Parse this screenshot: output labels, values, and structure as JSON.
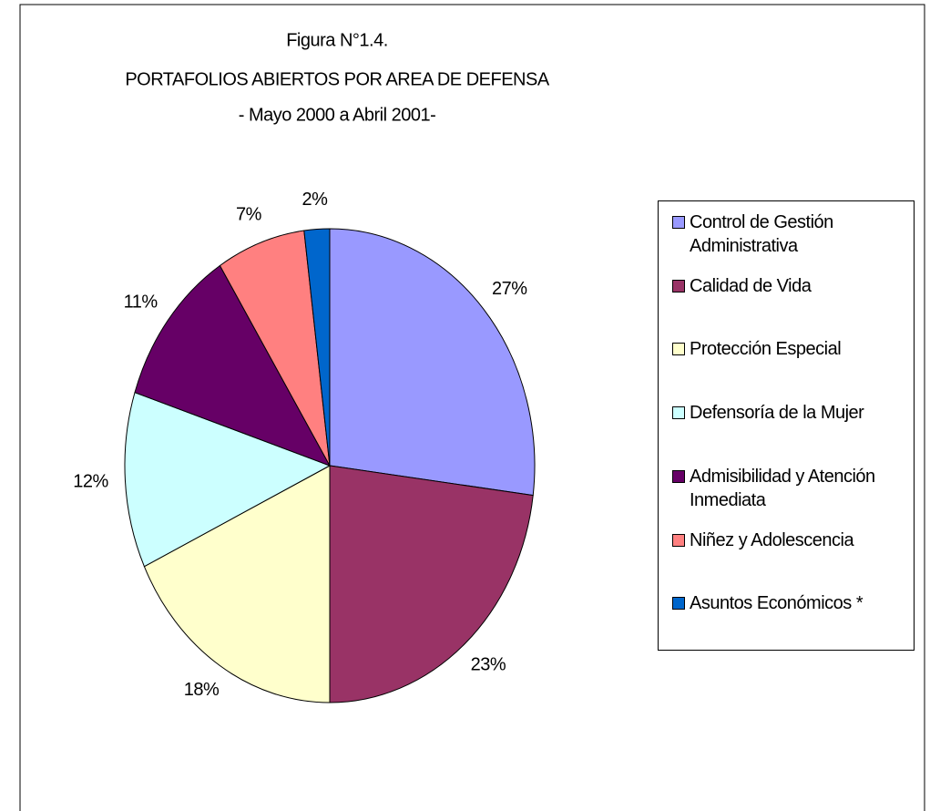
{
  "chart_data": {
    "type": "pie",
    "title": [
      "Figura N°1.4.",
      "PORTAFOLIOS ABIERTOS POR AREA DE DEFENSA",
      "- Mayo 2000 a Abril 2001-"
    ],
    "categories": [
      "Control de Gestión Administrativa",
      "Calidad de Vida",
      "Protección Especial",
      "Defensoría de la Mujer",
      "Admisibilidad y Atención Inmediata",
      "Niñez y Adolescencia",
      "Asuntos Económicos *"
    ],
    "values": [
      27,
      23,
      18,
      12,
      11,
      7,
      2
    ],
    "value_labels": [
      "27%",
      "23%",
      "18%",
      "12%",
      "11%",
      "7%",
      "2%"
    ],
    "colors": [
      "#9999ff",
      "#993366",
      "#ffffcc",
      "#ccffff",
      "#660066",
      "#ff8080",
      "#0066cc"
    ],
    "legend": "right"
  }
}
